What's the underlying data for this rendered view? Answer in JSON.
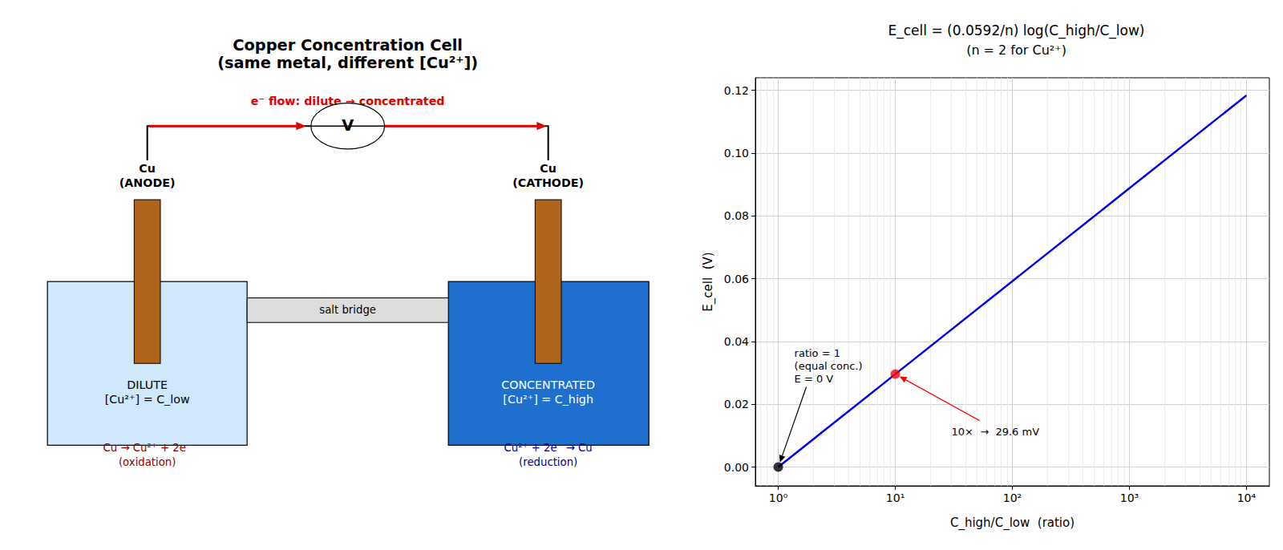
{
  "diagram": {
    "title": "Copper Concentration Cell",
    "subtitle": "(same metal, different [Cu²⁺])",
    "electron_flow": "e⁻ flow: dilute → concentrated",
    "meter": "V",
    "salt_bridge": "salt bridge",
    "anode": {
      "metal": "Cu",
      "role": "(ANODE)",
      "solution": "DILUTE",
      "concentration": "[Cu²⁺] = C_low",
      "reaction": "Cu → Cu²⁺ + 2e⁻",
      "process": "(oxidation)"
    },
    "cathode": {
      "metal": "Cu",
      "role": "(CATHODE)",
      "solution": "CONCENTRATED",
      "concentration": "[Cu²⁺] = C_high",
      "reaction": "Cu²⁺ + 2e⁻ → Cu",
      "process": "(reduction)"
    }
  },
  "chart_data": {
    "type": "line",
    "title": "E_cell = (0.0592/n) log(C_high/C_low)",
    "subtitle": "(n = 2 for Cu²⁺)",
    "x_label": "C_high/C_low  (ratio)",
    "y_label": "E_cell  (V)",
    "x": [
      1,
      10,
      100,
      1000,
      10000
    ],
    "values": [
      0,
      0.0296,
      0.0592,
      0.0888,
      0.1184
    ],
    "color": "#0000ee",
    "points": [
      {
        "x": 1,
        "y": 0,
        "color": "#000000",
        "annotation": "ratio = 1\n(equal conc.)\nE = 0 V"
      },
      {
        "x": 10,
        "y": 0.0296,
        "color": "#ff0000",
        "annotation": "10×  →  29.6 mV"
      }
    ],
    "log": "x",
    "grid": true,
    "xlim": [
      0.637,
      15700
    ],
    "xticks": [
      {
        "value": 1,
        "label": "10⁰"
      },
      {
        "value": 10,
        "label": "10¹"
      },
      {
        "value": 100,
        "label": "10²"
      },
      {
        "value": 1000,
        "label": "10³"
      },
      {
        "value": 10000,
        "label": "10⁴"
      }
    ],
    "ylim": [
      -0.006,
      0.124
    ],
    "yticks": [
      {
        "value": 0,
        "label": "0.00"
      },
      0.02,
      0.04,
      0.06,
      0.08,
      {
        "value": 0.1,
        "label": "0.10"
      },
      0.12
    ]
  }
}
